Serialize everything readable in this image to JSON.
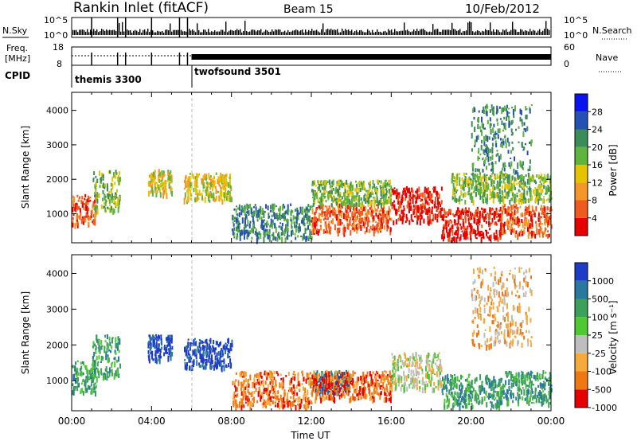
{
  "header": {
    "station": "Rankin Inlet (fitACF)",
    "beam": "Beam 15",
    "date": "10/Feb/2012"
  },
  "top_panels": {
    "nsky_label": "N.Sky",
    "nsky_ticks": [
      "10^5",
      "10^0"
    ],
    "nsearch_label": "N.Search",
    "nsearch_ticks": [
      "10^5",
      "10^0"
    ],
    "freq_label_1": "Freq.",
    "freq_label_2": "[MHz]",
    "freq_ticks": [
      "18",
      "8"
    ],
    "nave_label": "Nave",
    "nave_ticks": [
      "60",
      "0"
    ],
    "cpid_label": "CPID",
    "cpid_modes": [
      {
        "name": "themis 3300",
        "start": "00:00",
        "end": "06:00"
      },
      {
        "name": "twofsound 3501",
        "start": "06:00",
        "end": "24:00"
      }
    ]
  },
  "chart_data": [
    {
      "type": "heatmap",
      "panel": "power",
      "ylabel": "Slant Range [km]",
      "ylim": [
        180,
        4500
      ],
      "yticks": [
        "1000",
        "2000",
        "3000",
        "4000"
      ],
      "xlim_hours": [
        0,
        24
      ],
      "colorbar": {
        "label": "Power [dB]",
        "ticks": [
          "4",
          "8",
          "12",
          "16",
          "20",
          "24",
          "28"
        ],
        "colors": [
          "#0a14f0",
          "#2550b4",
          "#3c8c5a",
          "#5fb43c",
          "#e6c300",
          "#f59628",
          "#f05a1e",
          "#e60000"
        ],
        "range": [
          0,
          30
        ]
      },
      "regions": [
        {
          "t": [
            0.0,
            1.2
          ],
          "r": [
            700,
            1600
          ],
          "level": 6
        },
        {
          "t": [
            1.0,
            2.4
          ],
          "r": [
            1100,
            2300
          ],
          "level": 3
        },
        {
          "t": [
            3.8,
            5.0
          ],
          "r": [
            1600,
            2300
          ],
          "level": 4
        },
        {
          "t": [
            5.6,
            8.0
          ],
          "r": [
            1400,
            2200
          ],
          "level": 4
        },
        {
          "t": [
            8.0,
            12.0
          ],
          "r": [
            300,
            1300
          ],
          "level": 2
        },
        {
          "t": [
            12.0,
            16.0
          ],
          "r": [
            500,
            1300
          ],
          "level": 6
        },
        {
          "t": [
            12.0,
            16.0
          ],
          "r": [
            1300,
            2000
          ],
          "level": 3
        },
        {
          "t": [
            16.0,
            18.5
          ],
          "r": [
            800,
            1800
          ],
          "level": 7
        },
        {
          "t": [
            18.5,
            21.5
          ],
          "r": [
            300,
            1200
          ],
          "level": 7
        },
        {
          "t": [
            21.5,
            24.0
          ],
          "r": [
            400,
            1300
          ],
          "level": 6
        },
        {
          "t": [
            20.0,
            23.0
          ],
          "r": [
            2000,
            4200
          ],
          "level": 2
        },
        {
          "t": [
            19.0,
            24.0
          ],
          "r": [
            1400,
            2200
          ],
          "level": 3
        }
      ]
    },
    {
      "type": "heatmap",
      "panel": "velocity",
      "ylabel": "Slant Range [km]",
      "ylim": [
        180,
        4500
      ],
      "yticks": [
        "1000",
        "2000",
        "3000",
        "4000"
      ],
      "xlabel": "Time UT",
      "xticks": [
        "00:00",
        "04:00",
        "08:00",
        "12:00",
        "16:00",
        "20:00",
        "00:00"
      ],
      "xlim_hours": [
        0,
        24
      ],
      "colorbar": {
        "label": "Velocity [m s⁻¹]",
        "ticks": [
          "1000",
          "500",
          "100",
          "25",
          "-25",
          "-100",
          "-500",
          "-1000"
        ],
        "colors": [
          "#1e3cc8",
          "#2878a0",
          "#3ca05a",
          "#50c832",
          "#bebebe",
          "#f5aa3c",
          "#f07814",
          "#e60000"
        ],
        "range": [
          -1000,
          1000
        ]
      },
      "regions": [
        {
          "t": [
            0.0,
            1.2
          ],
          "r": [
            700,
            1600
          ],
          "level": 2
        },
        {
          "t": [
            1.0,
            2.4
          ],
          "r": [
            1100,
            2300
          ],
          "level": 2
        },
        {
          "t": [
            3.8,
            5.0
          ],
          "r": [
            1600,
            2300
          ],
          "level": 0
        },
        {
          "t": [
            5.6,
            8.0
          ],
          "r": [
            1400,
            2200
          ],
          "level": 0
        },
        {
          "t": [
            8.0,
            12.0
          ],
          "r": [
            300,
            1300
          ],
          "level": 6
        },
        {
          "t": [
            12.0,
            14.0
          ],
          "r": [
            700,
            1300
          ],
          "level": 1
        },
        {
          "t": [
            12.0,
            16.0
          ],
          "r": [
            500,
            1300
          ],
          "level": 6
        },
        {
          "t": [
            16.0,
            18.5
          ],
          "r": [
            800,
            1800
          ],
          "level": 4
        },
        {
          "t": [
            18.5,
            21.5
          ],
          "r": [
            300,
            1200
          ],
          "level": 2
        },
        {
          "t": [
            21.5,
            24.0
          ],
          "r": [
            400,
            1300
          ],
          "level": 2
        },
        {
          "t": [
            20.0,
            23.0
          ],
          "r": [
            2000,
            4200
          ],
          "level": 5
        }
      ]
    }
  ]
}
